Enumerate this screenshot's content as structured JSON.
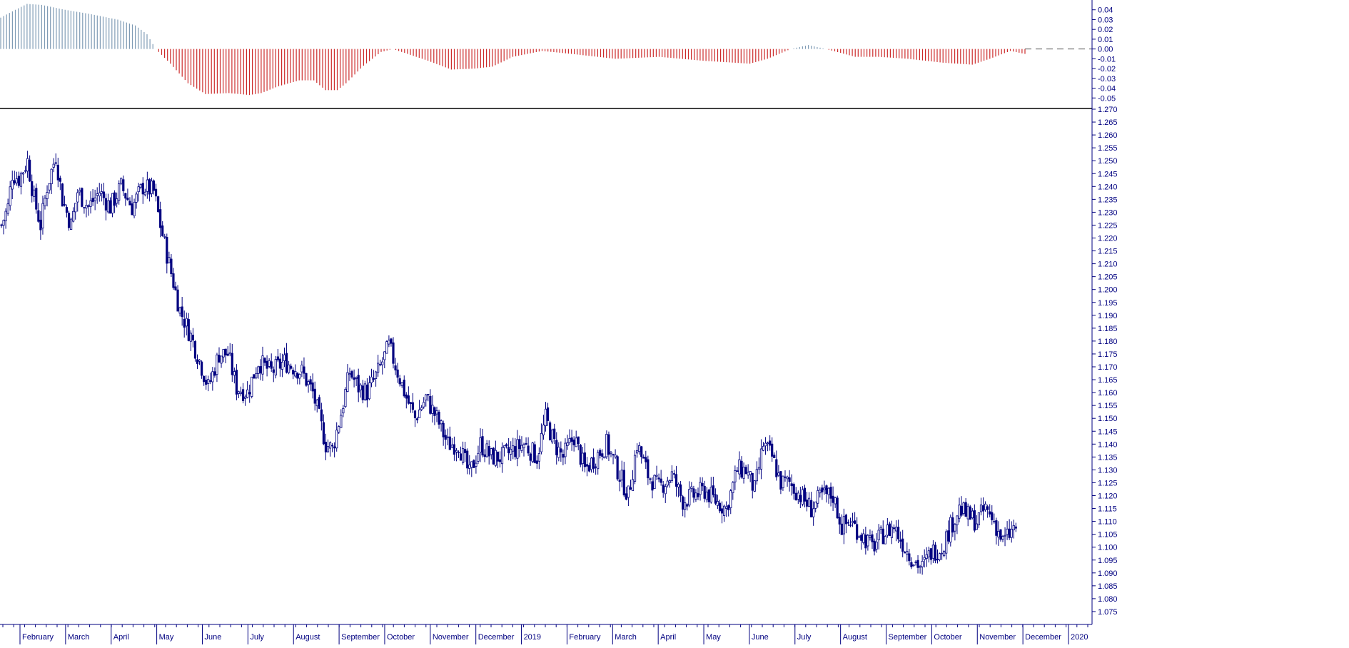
{
  "chart_data": [
    {
      "type": "bar",
      "name": "oscillator-panel",
      "ylim": [
        -0.06,
        0.05
      ],
      "yticks": [
        0.04,
        0.03,
        0.02,
        0.01,
        0.0,
        -0.01,
        -0.02,
        -0.03,
        -0.04,
        -0.05
      ],
      "yticklabels": [
        "0.04",
        "0.03",
        "0.02",
        "0.01",
        "0.00",
        "-0.01",
        "-0.02",
        "-0.03",
        "-0.04",
        "-0.05"
      ],
      "positive_color": "#7f9bb5",
      "negative_color": "#cc2a2a",
      "zero_line": "dashed",
      "keyframes": [
        [
          0,
          0.032
        ],
        [
          5,
          0.04
        ],
        [
          9,
          0.046
        ],
        [
          14,
          0.045
        ],
        [
          22,
          0.04
        ],
        [
          30,
          0.036
        ],
        [
          40,
          0.03
        ],
        [
          46,
          0.024
        ],
        [
          50,
          0.015
        ],
        [
          53,
          0.0
        ],
        [
          58,
          -0.015
        ],
        [
          64,
          -0.035
        ],
        [
          70,
          -0.046
        ],
        [
          78,
          -0.045
        ],
        [
          85,
          -0.047
        ],
        [
          89,
          -0.045
        ],
        [
          95,
          -0.038
        ],
        [
          102,
          -0.032
        ],
        [
          107,
          -0.032
        ],
        [
          111,
          -0.042
        ],
        [
          115,
          -0.042
        ],
        [
          118,
          -0.035
        ],
        [
          124,
          -0.017
        ],
        [
          130,
          -0.003
        ],
        [
          134,
          0.0
        ],
        [
          140,
          -0.006
        ],
        [
          146,
          -0.012
        ],
        [
          154,
          -0.021
        ],
        [
          162,
          -0.02
        ],
        [
          168,
          -0.018
        ],
        [
          175,
          -0.008
        ],
        [
          185,
          -0.002
        ],
        [
          195,
          -0.005
        ],
        [
          210,
          -0.01
        ],
        [
          225,
          -0.008
        ],
        [
          240,
          -0.012
        ],
        [
          256,
          -0.015
        ],
        [
          262,
          -0.01
        ],
        [
          270,
          0.0
        ],
        [
          276,
          0.004
        ],
        [
          282,
          0.0
        ],
        [
          292,
          -0.008
        ],
        [
          300,
          -0.008
        ],
        [
          310,
          -0.01
        ],
        [
          322,
          -0.014
        ],
        [
          332,
          -0.016
        ],
        [
          338,
          -0.01
        ],
        [
          345,
          -0.002
        ],
        [
          350,
          -0.005
        ]
      ]
    },
    {
      "type": "candlestick",
      "name": "price-panel",
      "ylim": [
        1.07,
        1.27
      ],
      "yticks": [
        1.27,
        1.265,
        1.26,
        1.255,
        1.25,
        1.245,
        1.24,
        1.235,
        1.23,
        1.225,
        1.22,
        1.215,
        1.21,
        1.205,
        1.2,
        1.195,
        1.19,
        1.185,
        1.18,
        1.175,
        1.17,
        1.165,
        1.16,
        1.155,
        1.15,
        1.145,
        1.14,
        1.135,
        1.13,
        1.125,
        1.12,
        1.115,
        1.11,
        1.105,
        1.1,
        1.095,
        1.09,
        1.085,
        1.08,
        1.075
      ],
      "yticklabels": [
        "1.270",
        "1.265",
        "1.260",
        "1.255",
        "1.250",
        "1.245",
        "1.240",
        "1.235",
        "1.230",
        "1.225",
        "1.220",
        "1.215",
        "1.210",
        "1.205",
        "1.200",
        "1.195",
        "1.190",
        "1.185",
        "1.180",
        "1.175",
        "1.170",
        "1.165",
        "1.160",
        "1.155",
        "1.150",
        "1.145",
        "1.140",
        "1.135",
        "1.130",
        "1.125",
        "1.120",
        "1.115",
        "1.110",
        "1.105",
        "1.100",
        "1.095",
        "1.090",
        "1.085",
        "1.080",
        "1.075"
      ],
      "color": "#000080",
      "keyframes": [
        [
          0,
          1.225
        ],
        [
          3,
          1.232
        ],
        [
          5,
          1.245
        ],
        [
          8,
          1.243
        ],
        [
          12,
          1.25
        ],
        [
          15,
          1.235
        ],
        [
          18,
          1.225
        ],
        [
          21,
          1.24
        ],
        [
          25,
          1.252
        ],
        [
          28,
          1.235
        ],
        [
          32,
          1.225
        ],
        [
          35,
          1.238
        ],
        [
          40,
          1.232
        ],
        [
          45,
          1.238
        ],
        [
          50,
          1.232
        ],
        [
          55,
          1.24
        ],
        [
          60,
          1.232
        ],
        [
          65,
          1.24
        ],
        [
          70,
          1.238
        ],
        [
          73,
          1.225
        ],
        [
          77,
          1.21
        ],
        [
          82,
          1.192
        ],
        [
          87,
          1.182
        ],
        [
          92,
          1.17
        ],
        [
          95,
          1.162
        ],
        [
          100,
          1.175
        ],
        [
          104,
          1.175
        ],
        [
          108,
          1.162
        ],
        [
          113,
          1.16
        ],
        [
          118,
          1.172
        ],
        [
          124,
          1.168
        ],
        [
          130,
          1.172
        ],
        [
          138,
          1.168
        ],
        [
          143,
          1.16
        ],
        [
          146,
          1.15
        ],
        [
          149,
          1.14
        ],
        [
          152,
          1.138
        ],
        [
          156,
          1.152
        ],
        [
          160,
          1.168
        ],
        [
          164,
          1.162
        ],
        [
          168,
          1.16
        ],
        [
          173,
          1.168
        ],
        [
          178,
          1.178
        ],
        [
          182,
          1.168
        ],
        [
          186,
          1.158
        ],
        [
          190,
          1.15
        ],
        [
          195,
          1.158
        ],
        [
          200,
          1.15
        ],
        [
          205,
          1.14
        ],
        [
          210,
          1.14
        ],
        [
          215,
          1.128
        ],
        [
          220,
          1.14
        ],
        [
          225,
          1.135
        ],
        [
          230,
          1.135
        ],
        [
          236,
          1.138
        ],
        [
          240,
          1.14
        ],
        [
          246,
          1.135
        ],
        [
          250,
          1.15
        ],
        [
          254,
          1.14
        ],
        [
          258,
          1.135
        ],
        [
          263,
          1.143
        ],
        [
          268,
          1.13
        ],
        [
          273,
          1.135
        ],
        [
          278,
          1.14
        ],
        [
          283,
          1.13
        ],
        [
          288,
          1.12
        ],
        [
          292,
          1.14
        ],
        [
          297,
          1.128
        ],
        [
          302,
          1.123
        ],
        [
          308,
          1.128
        ],
        [
          313,
          1.118
        ],
        [
          318,
          1.12
        ],
        [
          323,
          1.122
        ],
        [
          328,
          1.118
        ],
        [
          333,
          1.115
        ],
        [
          338,
          1.13
        ],
        [
          342,
          1.13
        ],
        [
          346,
          1.122
        ],
        [
          350,
          1.14
        ],
        [
          354,
          1.135
        ],
        [
          358,
          1.125
        ],
        [
          362,
          1.125
        ],
        [
          367,
          1.12
        ],
        [
          372,
          1.115
        ],
        [
          377,
          1.12
        ],
        [
          382,
          1.12
        ],
        [
          386,
          1.108
        ],
        [
          390,
          1.11
        ],
        [
          395,
          1.105
        ],
        [
          400,
          1.1
        ],
        [
          405,
          1.105
        ],
        [
          410,
          1.108
        ],
        [
          415,
          1.1
        ],
        [
          419,
          1.095
        ],
        [
          423,
          1.092
        ],
        [
          427,
          1.098
        ],
        [
          432,
          1.1
        ],
        [
          436,
          1.108
        ],
        [
          440,
          1.115
        ],
        [
          444,
          1.112
        ],
        [
          448,
          1.11
        ],
        [
          452,
          1.115
        ],
        [
          456,
          1.11
        ],
        [
          460,
          1.102
        ],
        [
          463,
          1.105
        ],
        [
          466,
          1.108
        ]
      ]
    }
  ],
  "x_axis": {
    "tick_labels": [
      "February",
      "March",
      "April",
      "May",
      "June",
      "July",
      "August",
      "September",
      "October",
      "November",
      "December",
      "2019",
      "February",
      "March",
      "April",
      "May",
      "June",
      "July",
      "August",
      "September",
      "October",
      "November",
      "December",
      "2020"
    ]
  },
  "colors": {
    "axis": "#000080",
    "separator": "#000000",
    "background": "#ffffff"
  }
}
